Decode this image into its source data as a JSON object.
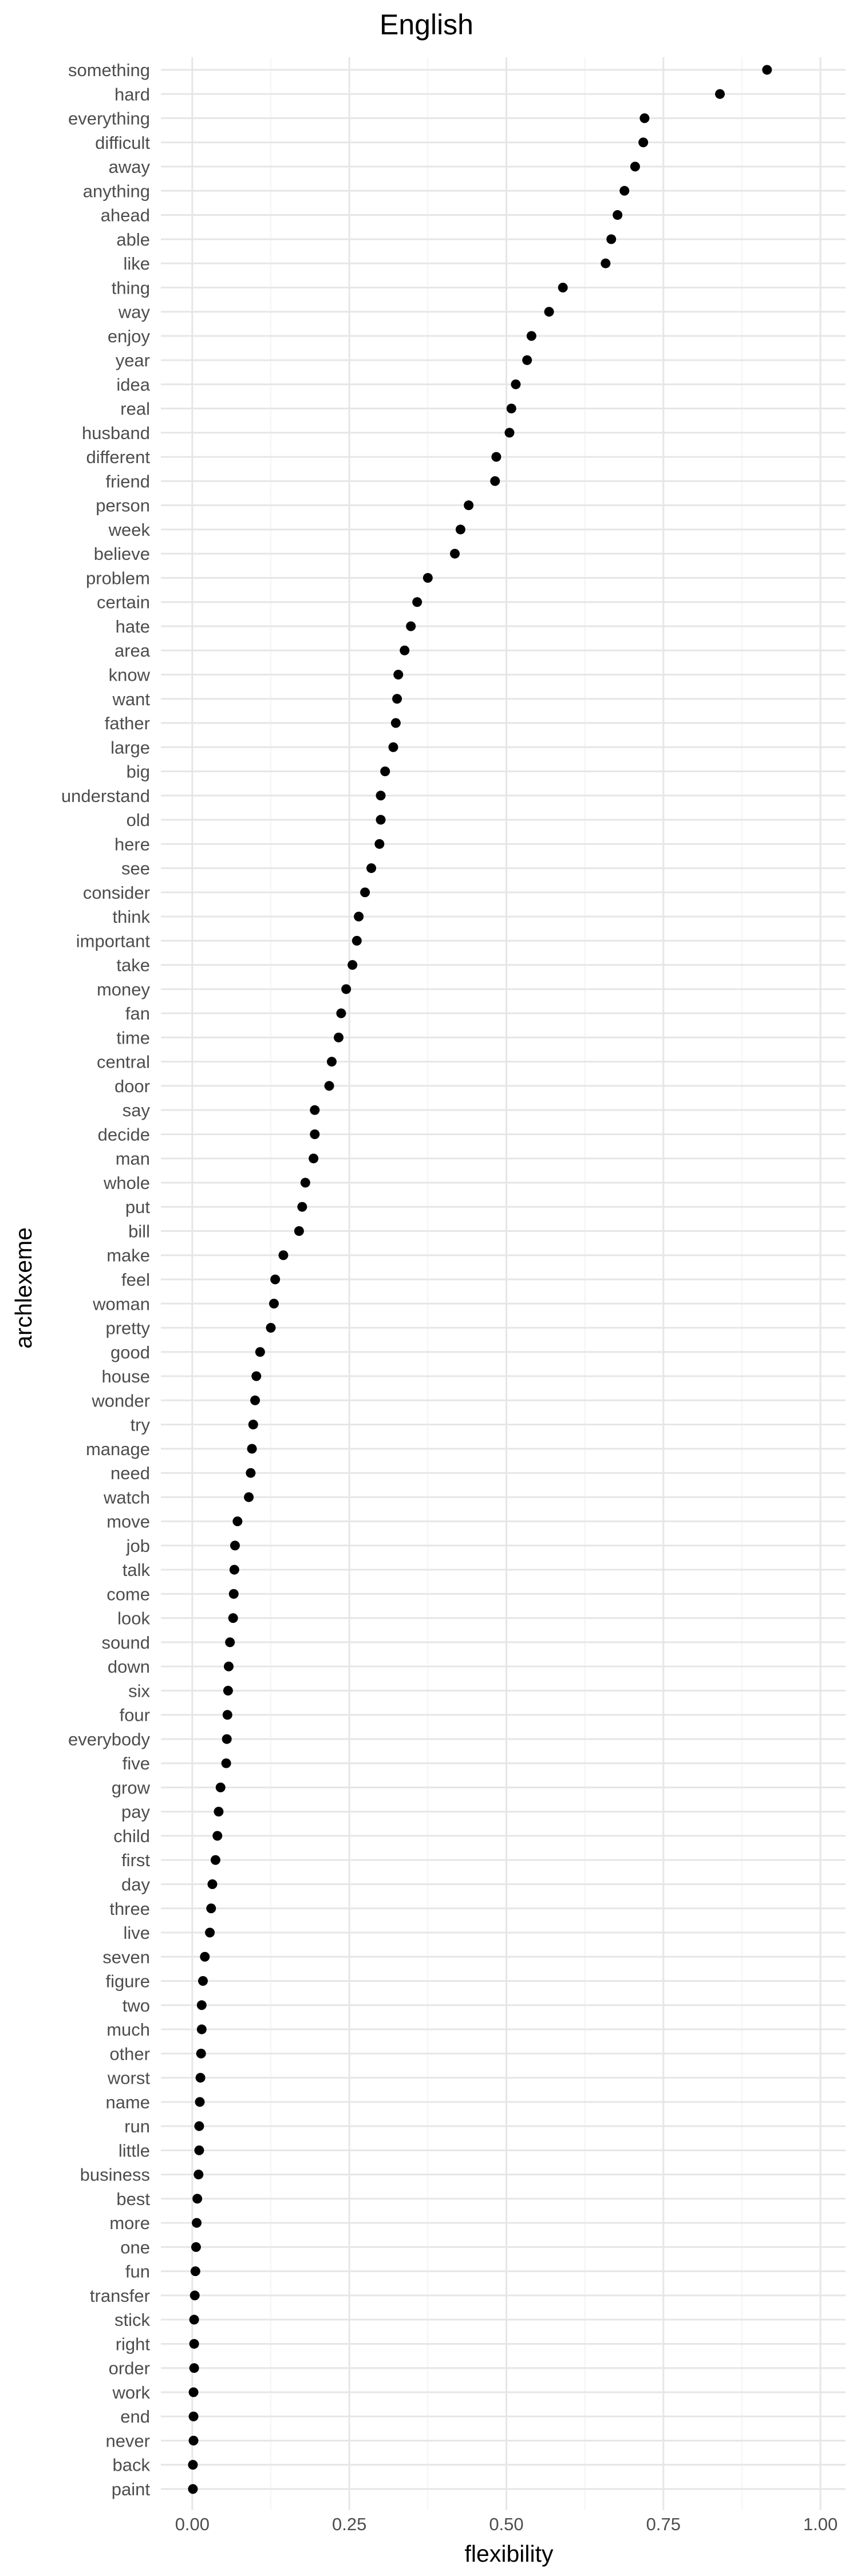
{
  "chart_data": {
    "type": "scatter",
    "title": "English",
    "xlabel": "flexibility",
    "ylabel": "archlexeme",
    "xlim": [
      -0.05,
      1.04
    ],
    "x_ticks": [
      0.0,
      0.25,
      0.5,
      0.75,
      1.0
    ],
    "x_tick_labels": [
      "0.00",
      "0.25",
      "0.50",
      "0.75",
      "1.00"
    ],
    "grid": true,
    "legend": "none",
    "point_color": "#000000",
    "categories": [
      "something",
      "hard",
      "everything",
      "difficult",
      "away",
      "anything",
      "ahead",
      "able",
      "like",
      "thing",
      "way",
      "enjoy",
      "year",
      "idea",
      "real",
      "husband",
      "different",
      "friend",
      "person",
      "week",
      "believe",
      "problem",
      "certain",
      "hate",
      "area",
      "know",
      "want",
      "father",
      "large",
      "big",
      "understand",
      "old",
      "here",
      "see",
      "consider",
      "think",
      "important",
      "take",
      "money",
      "fan",
      "time",
      "central",
      "door",
      "say",
      "decide",
      "man",
      "whole",
      "put",
      "bill",
      "make",
      "feel",
      "woman",
      "pretty",
      "good",
      "house",
      "wonder",
      "try",
      "manage",
      "need",
      "watch",
      "move",
      "job",
      "talk",
      "come",
      "look",
      "sound",
      "down",
      "six",
      "four",
      "everybody",
      "five",
      "grow",
      "pay",
      "child",
      "first",
      "day",
      "three",
      "live",
      "seven",
      "figure",
      "two",
      "much",
      "other",
      "worst",
      "name",
      "run",
      "little",
      "business",
      "best",
      "more",
      "one",
      "fun",
      "transfer",
      "stick",
      "right",
      "order",
      "work",
      "end",
      "never",
      "back",
      "paint"
    ],
    "values": [
      0.915,
      0.84,
      0.72,
      0.718,
      0.705,
      0.688,
      0.677,
      0.667,
      0.658,
      0.59,
      0.568,
      0.54,
      0.533,
      0.515,
      0.508,
      0.505,
      0.484,
      0.482,
      0.44,
      0.427,
      0.418,
      0.375,
      0.358,
      0.348,
      0.338,
      0.328,
      0.326,
      0.324,
      0.32,
      0.307,
      0.3,
      0.3,
      0.298,
      0.285,
      0.275,
      0.265,
      0.262,
      0.255,
      0.245,
      0.237,
      0.233,
      0.222,
      0.218,
      0.195,
      0.195,
      0.193,
      0.18,
      0.175,
      0.17,
      0.145,
      0.132,
      0.13,
      0.125,
      0.108,
      0.102,
      0.1,
      0.097,
      0.095,
      0.093,
      0.09,
      0.072,
      0.068,
      0.067,
      0.066,
      0.065,
      0.06,
      0.058,
      0.057,
      0.056,
      0.055,
      0.054,
      0.045,
      0.042,
      0.04,
      0.037,
      0.032,
      0.03,
      0.028,
      0.02,
      0.017,
      0.015,
      0.015,
      0.014,
      0.013,
      0.012,
      0.011,
      0.011,
      0.01,
      0.008,
      0.007,
      0.006,
      0.005,
      0.004,
      0.003,
      0.003,
      0.003,
      0.002,
      0.002,
      0.002,
      0.001,
      0.001
    ]
  }
}
